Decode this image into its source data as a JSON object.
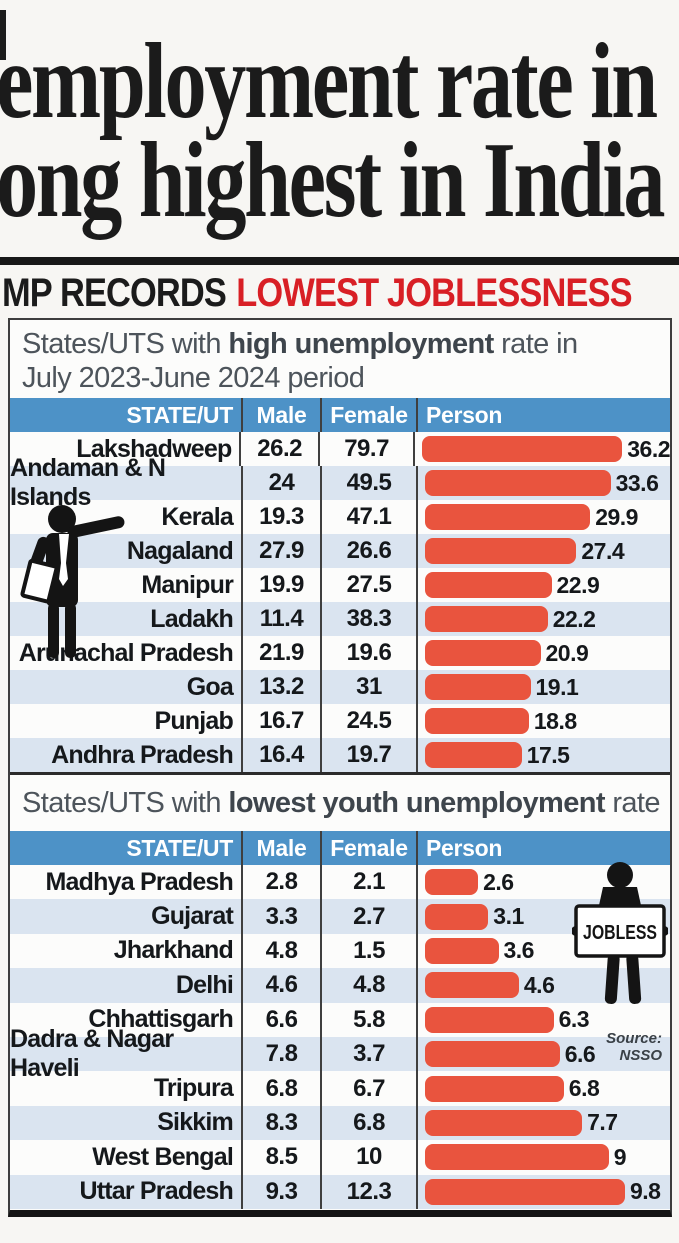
{
  "headline": {
    "line1": "employment rate in",
    "line2": "ong highest in India"
  },
  "kicker": {
    "black": "MP RECORDS",
    "red": "LOWEST JOBLESSNESS"
  },
  "table1": {
    "caption": {
      "pre": "States/UTS with ",
      "bold": "high unemployment",
      "post": " rate in",
      "line2": "July 2023-June 2024 period"
    },
    "columns": [
      "STATE/UT",
      "Male",
      "Female",
      "Person"
    ],
    "max_value": 36.2,
    "rows": [
      {
        "state": "Lakshadweep",
        "male": "26.2",
        "female": "79.7",
        "person": "36.2",
        "person_value": 36.2
      },
      {
        "state": "Andaman & N Islands",
        "male": "24",
        "female": "49.5",
        "person": "33.6",
        "person_value": 33.6
      },
      {
        "state": "Kerala",
        "male": "19.3",
        "female": "47.1",
        "person": "29.9",
        "person_value": 29.9
      },
      {
        "state": "Nagaland",
        "male": "27.9",
        "female": "26.6",
        "person": "27.4",
        "person_value": 27.4
      },
      {
        "state": "Manipur",
        "male": "19.9",
        "female": "27.5",
        "person": "22.9",
        "person_value": 22.9
      },
      {
        "state": "Ladakh",
        "male": "11.4",
        "female": "38.3",
        "person": "22.2",
        "person_value": 22.2
      },
      {
        "state": "Arunachal Pradesh",
        "male": "21.9",
        "female": "19.6",
        "person": "20.9",
        "person_value": 20.9
      },
      {
        "state": "Goa",
        "male": "13.2",
        "female": "31",
        "person": "19.1",
        "person_value": 19.1
      },
      {
        "state": "Punjab",
        "male": "16.7",
        "female": "24.5",
        "person": "18.8",
        "person_value": 18.8
      },
      {
        "state": "Andhra Pradesh",
        "male": "16.4",
        "female": "19.7",
        "person": "17.5",
        "person_value": 17.5
      }
    ]
  },
  "table2": {
    "caption": {
      "pre": "States/UTS with ",
      "bold": "lowest youth unemployment",
      "post": " rate"
    },
    "columns": [
      "STATE/UT",
      "Male",
      "Female",
      "Person"
    ],
    "max_value": 9.8,
    "sign_text": "JOBLESS",
    "rows": [
      {
        "state": "Madhya Pradesh",
        "male": "2.8",
        "female": "2.1",
        "person": "2.6",
        "person_value": 2.6
      },
      {
        "state": "Gujarat",
        "male": "3.3",
        "female": "2.7",
        "person": "3.1",
        "person_value": 3.1
      },
      {
        "state": "Jharkhand",
        "male": "4.8",
        "female": "1.5",
        "person": "3.6",
        "person_value": 3.6
      },
      {
        "state": "Delhi",
        "male": "4.6",
        "female": "4.8",
        "person": "4.6",
        "person_value": 4.6
      },
      {
        "state": "Chhattisgarh",
        "male": "6.6",
        "female": "5.8",
        "person": "6.3",
        "person_value": 6.3
      },
      {
        "state": "Dadra & Nagar Haveli",
        "male": "7.8",
        "female": "3.7",
        "person": "6.6",
        "person_value": 6.6
      },
      {
        "state": "Tripura",
        "male": "6.8",
        "female": "6.7",
        "person": "6.8",
        "person_value": 6.8
      },
      {
        "state": "Sikkim",
        "male": "8.3",
        "female": "6.8",
        "person": "7.7",
        "person_value": 7.7
      },
      {
        "state": "West Bengal",
        "male": "8.5",
        "female": "10",
        "person": "9",
        "person_value": 9
      },
      {
        "state": "Uttar Pradesh",
        "male": "9.3",
        "female": "12.3",
        "person": "9.8",
        "person_value": 9.8
      }
    ]
  },
  "source": {
    "line1": "Source:",
    "line2": "NSSO"
  },
  "icons": {
    "left_figure": "businessman-pointing-icon",
    "right_figure": "jobless-sign-icon"
  },
  "colors": {
    "bar_red": "#e9543e",
    "header_blue": "#4d92c7",
    "stripe_blue": "#dae4f0",
    "kicker_red": "#d81f25",
    "headline_black": "#1b1b1b"
  },
  "chart_data": [
    {
      "type": "bar",
      "orientation": "horizontal",
      "title": "States/UTS with high unemployment rate in July 2023-June 2024 period",
      "categories": [
        "Lakshadweep",
        "Andaman & N Islands",
        "Kerala",
        "Nagaland",
        "Manipur",
        "Ladakh",
        "Arunachal Pradesh",
        "Goa",
        "Punjab",
        "Andhra Pradesh"
      ],
      "series": [
        {
          "name": "Male",
          "values": [
            26.2,
            24,
            19.3,
            27.9,
            19.9,
            11.4,
            21.9,
            13.2,
            16.7,
            16.4
          ]
        },
        {
          "name": "Female",
          "values": [
            79.7,
            49.5,
            47.1,
            26.6,
            27.5,
            38.3,
            19.6,
            31,
            24.5,
            19.7
          ]
        },
        {
          "name": "Person",
          "values": [
            36.2,
            33.6,
            29.9,
            27.4,
            22.9,
            22.2,
            20.9,
            19.1,
            18.8,
            17.5
          ]
        }
      ],
      "bars_drawn_for": "Person",
      "xlim": [
        0,
        36.2
      ],
      "grid": false,
      "legend_position": "none"
    },
    {
      "type": "bar",
      "orientation": "horizontal",
      "title": "States/UTS with lowest youth unemployment rate",
      "categories": [
        "Madhya Pradesh",
        "Gujarat",
        "Jharkhand",
        "Delhi",
        "Chhattisgarh",
        "Dadra & Nagar Haveli",
        "Tripura",
        "Sikkim",
        "West Bengal",
        "Uttar Pradesh"
      ],
      "series": [
        {
          "name": "Male",
          "values": [
            2.8,
            3.3,
            4.8,
            4.6,
            6.6,
            7.8,
            6.8,
            8.3,
            8.5,
            9.3
          ]
        },
        {
          "name": "Female",
          "values": [
            2.1,
            2.7,
            1.5,
            4.8,
            5.8,
            3.7,
            6.7,
            6.8,
            10,
            12.3
          ]
        },
        {
          "name": "Person",
          "values": [
            2.6,
            3.1,
            3.6,
            4.6,
            6.3,
            6.6,
            6.8,
            7.7,
            9,
            9.8
          ]
        }
      ],
      "bars_drawn_for": "Person",
      "xlim": [
        0,
        9.8
      ],
      "grid": false,
      "legend_position": "none"
    }
  ]
}
